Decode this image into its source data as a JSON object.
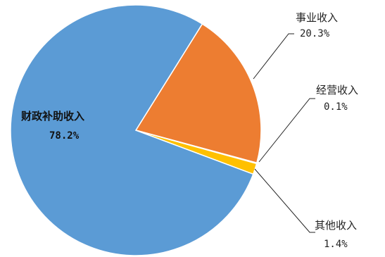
{
  "chart_data": {
    "type": "pie",
    "slices": [
      {
        "label": "事业收入",
        "value": 20.3,
        "display": "20.3%",
        "color": "#ED7D31"
      },
      {
        "label": "经营收入",
        "value": 0.1,
        "display": "0.1%",
        "color": "#A5A5A5"
      },
      {
        "label": "其他收入",
        "value": 1.4,
        "display": "1.4%",
        "color": "#FFC000"
      },
      {
        "label": "财政补助收入",
        "value": 78.2,
        "display": "78.2%",
        "color": "#5B9BD5"
      }
    ],
    "legend": "none",
    "start_angle_deg": 32,
    "direction": "clockwise"
  }
}
